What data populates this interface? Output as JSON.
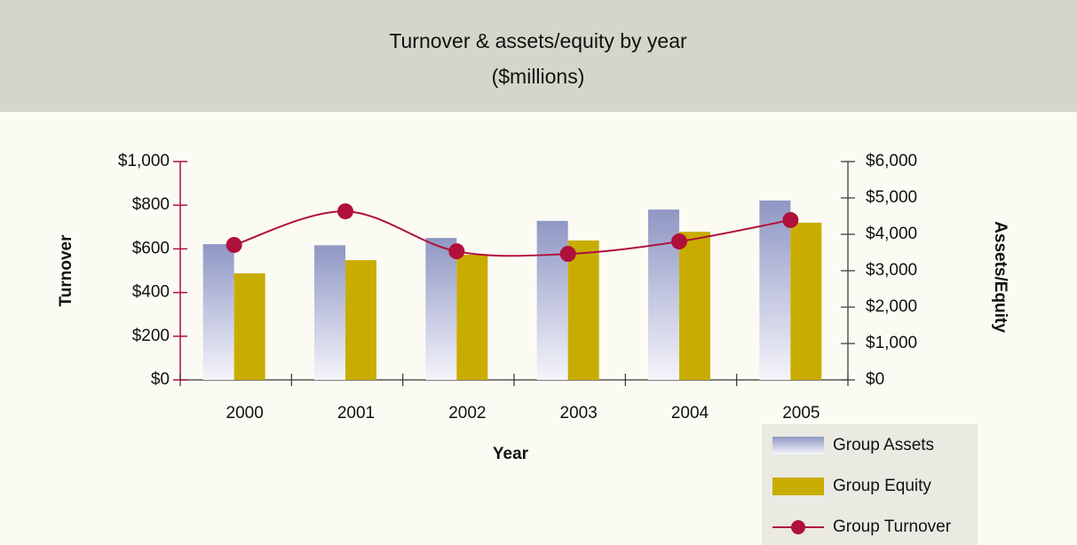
{
  "chart_data": {
    "type": "bar",
    "title": "Turnover & assets/equity by year",
    "subtitle": "($millions)",
    "x_label": "Year",
    "y_label": "Turnover",
    "y2_label": "Assets/Equity",
    "categories": [
      "2000",
      "2001",
      "2002",
      "2003",
      "2004",
      "2005"
    ],
    "series": [
      {
        "name": "Group Assets",
        "type": "bar",
        "axis": "y2",
        "color": "#8f97c4",
        "values": [
          3730,
          3700,
          3900,
          4370,
          4680,
          4930
        ]
      },
      {
        "name": "Group Equity",
        "type": "bar",
        "axis": "y2",
        "color": "#c8ad00",
        "values": [
          2930,
          3290,
          3440,
          3830,
          4070,
          4320
        ]
      },
      {
        "name": "Group Turnover",
        "type": "line",
        "axis": "y",
        "color": "#b0103c",
        "values": [
          618,
          772,
          589,
          577,
          634,
          732
        ]
      }
    ],
    "ylim": [
      0,
      1000
    ],
    "yticks": [
      {
        "value": 0,
        "label": "$0"
      },
      {
        "value": 200,
        "label": "$200"
      },
      {
        "value": 400,
        "label": "$400"
      },
      {
        "value": 600,
        "label": "$600"
      },
      {
        "value": 800,
        "label": "$800"
      },
      {
        "value": 1000,
        "label": "$1,000"
      }
    ],
    "y2lim": [
      0,
      6000
    ],
    "y2ticks": [
      {
        "value": 0,
        "label": "$0"
      },
      {
        "value": 1000,
        "label": "$1,000"
      },
      {
        "value": 2000,
        "label": "$2,000"
      },
      {
        "value": 3000,
        "label": "$3,000"
      },
      {
        "value": 4000,
        "label": "$4,000"
      },
      {
        "value": 5000,
        "label": "$5,000"
      },
      {
        "value": 6000,
        "label": "$6,000"
      }
    ],
    "legend": "bottom-right"
  }
}
